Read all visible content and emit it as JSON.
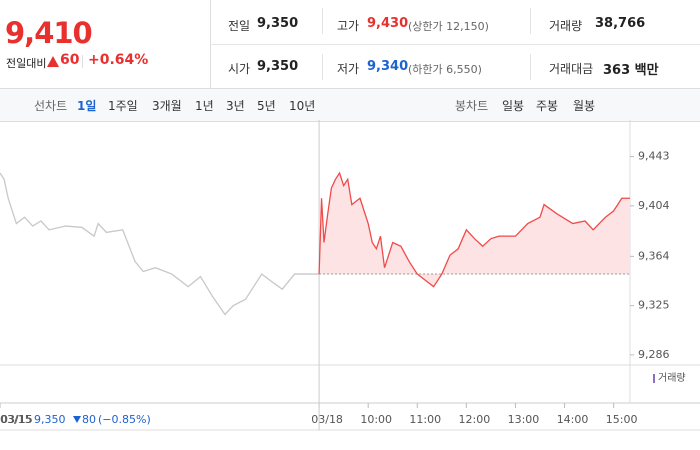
{
  "header": {
    "price": "9,410",
    "change_label": "전일대비",
    "change": "60",
    "change_rate": "+0.64%"
  },
  "stats": [
    {
      "label": "전일",
      "value": "9,350"
    },
    {
      "label": "고가",
      "value": "9,430",
      "note": "(상한가 12,150)"
    },
    {
      "label": "거래량",
      "value": "38,766"
    },
    {
      "label": "시가",
      "value": "9,350"
    },
    {
      "label": "저가",
      "value": "9,340",
      "note": "(하한가 6,550)"
    },
    {
      "label": "거래대금",
      "value": "363 백만"
    }
  ],
  "tabs": {
    "line_label": "선차트",
    "line": [
      "1일",
      "1주일",
      "3개월",
      "1년",
      "3년",
      "5년",
      "10년"
    ],
    "candle_label": "봉차트",
    "candle": [
      "일봉",
      "주봉",
      "월봉"
    ]
  },
  "chart_data": {
    "type": "line",
    "volume_label": "거래량",
    "xlim": [
      0,
      770
    ],
    "xticks": [
      {
        "value": 0,
        "label": "03/15"
      },
      {
        "value": 390,
        "label": "03/18"
      },
      {
        "value": 450,
        "label": "10:00"
      },
      {
        "value": 510,
        "label": "11:00"
      },
      {
        "value": 570,
        "label": "12:00"
      },
      {
        "value": 630,
        "label": "13:00"
      },
      {
        "value": 690,
        "label": "14:00"
      },
      {
        "value": 750,
        "label": "15:00"
      }
    ],
    "ylim": [
      9278,
      9468
    ],
    "yticks": [
      {
        "value": 9443,
        "label": "9,443"
      },
      {
        "value": 9404,
        "label": "9,404"
      },
      {
        "value": 9364,
        "label": "9,364"
      },
      {
        "value": 9325,
        "label": "9,325"
      },
      {
        "value": 9286,
        "label": "9,286"
      }
    ],
    "series": [
      {
        "color": "#c8c8c8",
        "x": [
          0,
          5,
          10,
          15,
          20,
          30,
          40,
          50,
          60,
          80,
          100,
          115,
          120,
          130,
          150,
          165,
          175,
          190,
          210,
          220,
          230,
          245,
          260,
          275,
          285,
          300,
          310,
          320,
          330,
          345,
          360,
          375,
          390
        ],
        "values": [
          9430,
          9425,
          9410,
          9400,
          9390,
          9395,
          9388,
          9392,
          9385,
          9388,
          9387,
          9380,
          9390,
          9383,
          9385,
          9360,
          9352,
          9355,
          9350,
          9345,
          9340,
          9348,
          9332,
          9318,
          9325,
          9330,
          9340,
          9350,
          9345,
          9338,
          9350,
          9350,
          9350
        ]
      },
      {
        "color": "#f04a4a",
        "x": [
          390,
          393,
          396,
          400,
          405,
          410,
          415,
          420,
          425,
          430,
          440,
          450,
          455,
          460,
          465,
          470,
          475,
          480,
          490,
          500,
          510,
          520,
          530,
          540,
          550,
          560,
          570,
          580,
          590,
          600,
          610,
          630,
          645,
          660,
          665,
          680,
          700,
          715,
          725,
          740,
          750,
          760,
          770
        ],
        "values": [
          9350,
          9410,
          9375,
          9395,
          9418,
          9425,
          9430,
          9420,
          9425,
          9405,
          9410,
          9390,
          9375,
          9370,
          9380,
          9355,
          9365,
          9375,
          9372,
          9360,
          9350,
          9345,
          9340,
          9350,
          9365,
          9370,
          9385,
          9378,
          9372,
          9378,
          9380,
          9380,
          9390,
          9395,
          9405,
          9398,
          9390,
          9392,
          9385,
          9395,
          9400,
          9410,
          9410
        ]
      }
    ]
  },
  "footer": {
    "date": "03/15",
    "price": "9,350",
    "change": "80",
    "rate": "(−0.85%)"
  }
}
